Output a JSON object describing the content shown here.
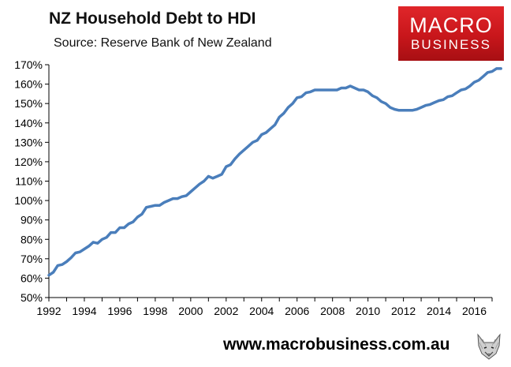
{
  "title": "NZ Household Debt to HDI",
  "subtitle": "Source: Reserve Bank of New Zealand",
  "logo": {
    "line1": "MACRO",
    "line2": "BUSINESS",
    "color": "#c8161b"
  },
  "footer": {
    "url": "www.macrobusiness.com.au",
    "icon": "wolf-icon"
  },
  "colors": {
    "line": "#4a7ebb",
    "axis": "#000000"
  },
  "chart_data": {
    "type": "line",
    "title": "NZ Household Debt to HDI",
    "subtitle": "Source: Reserve Bank of New Zealand",
    "xlabel": "",
    "ylabel": "",
    "xlim": [
      1992,
      2017
    ],
    "ylim": [
      50,
      170
    ],
    "grid": false,
    "x_ticks": [
      1992,
      1994,
      1996,
      1998,
      2000,
      2002,
      2004,
      2006,
      2008,
      2010,
      2012,
      2014,
      2016
    ],
    "y_ticks": [
      "50%",
      "60%",
      "70%",
      "80%",
      "90%",
      "100%",
      "110%",
      "120%",
      "130%",
      "140%",
      "150%",
      "160%",
      "170%"
    ],
    "series": [
      {
        "values": [
          [
            1992.0,
            61.5
          ],
          [
            1992.25,
            63
          ],
          [
            1992.5,
            66.5
          ],
          [
            1992.75,
            67
          ],
          [
            1993.0,
            68.5
          ],
          [
            1993.25,
            70.5
          ],
          [
            1993.5,
            73
          ],
          [
            1993.75,
            73.5
          ],
          [
            1994.0,
            75
          ],
          [
            1994.25,
            76.5
          ],
          [
            1994.5,
            78.5
          ],
          [
            1994.75,
            78
          ],
          [
            1995.0,
            80
          ],
          [
            1995.25,
            81
          ],
          [
            1995.5,
            83.5
          ],
          [
            1995.75,
            83.5
          ],
          [
            1996.0,
            86
          ],
          [
            1996.25,
            86
          ],
          [
            1996.5,
            88
          ],
          [
            1996.75,
            89
          ],
          [
            1997.0,
            91.5
          ],
          [
            1997.25,
            93
          ],
          [
            1997.5,
            96.5
          ],
          [
            1997.75,
            97
          ],
          [
            1998.0,
            97.5
          ],
          [
            1998.25,
            97.5
          ],
          [
            1998.5,
            99
          ],
          [
            1998.75,
            100
          ],
          [
            1999.0,
            101
          ],
          [
            1999.25,
            101
          ],
          [
            1999.5,
            102
          ],
          [
            1999.75,
            102.5
          ],
          [
            2000.0,
            104.5
          ],
          [
            2000.25,
            106.5
          ],
          [
            2000.5,
            108.5
          ],
          [
            2000.75,
            110
          ],
          [
            2001.0,
            112.5
          ],
          [
            2001.25,
            111.5
          ],
          [
            2001.5,
            112.5
          ],
          [
            2001.75,
            113.5
          ],
          [
            2002.0,
            117.5
          ],
          [
            2002.25,
            118.5
          ],
          [
            2002.5,
            121.5
          ],
          [
            2002.75,
            124
          ],
          [
            2003.0,
            126
          ],
          [
            2003.25,
            128
          ],
          [
            2003.5,
            130
          ],
          [
            2003.75,
            131
          ],
          [
            2004.0,
            134
          ],
          [
            2004.25,
            135
          ],
          [
            2004.5,
            137
          ],
          [
            2004.75,
            139
          ],
          [
            2005.0,
            143
          ],
          [
            2005.25,
            145
          ],
          [
            2005.5,
            148
          ],
          [
            2005.75,
            150
          ],
          [
            2006.0,
            153
          ],
          [
            2006.25,
            153.5
          ],
          [
            2006.5,
            155.5
          ],
          [
            2006.75,
            156
          ],
          [
            2007.0,
            157
          ],
          [
            2007.5,
            157
          ],
          [
            2008.0,
            157
          ],
          [
            2008.25,
            157
          ],
          [
            2008.5,
            158
          ],
          [
            2008.75,
            158
          ],
          [
            2009.0,
            159
          ],
          [
            2009.25,
            158
          ],
          [
            2009.5,
            157
          ],
          [
            2009.75,
            157
          ],
          [
            2010.0,
            156
          ],
          [
            2010.25,
            154
          ],
          [
            2010.5,
            153
          ],
          [
            2010.75,
            151
          ],
          [
            2011.0,
            150
          ],
          [
            2011.25,
            148
          ],
          [
            2011.5,
            147
          ],
          [
            2011.75,
            146.5
          ],
          [
            2012.0,
            146.5
          ],
          [
            2012.5,
            146.5
          ],
          [
            2012.75,
            147
          ],
          [
            2013.0,
            148
          ],
          [
            2013.25,
            149
          ],
          [
            2013.5,
            149.5
          ],
          [
            2013.75,
            150.5
          ],
          [
            2014.0,
            151.5
          ],
          [
            2014.25,
            152
          ],
          [
            2014.5,
            153.5
          ],
          [
            2014.75,
            154
          ],
          [
            2015.0,
            155.5
          ],
          [
            2015.25,
            157
          ],
          [
            2015.5,
            157.5
          ],
          [
            2015.75,
            159
          ],
          [
            2016.0,
            161
          ],
          [
            2016.25,
            162
          ],
          [
            2016.5,
            164
          ],
          [
            2016.75,
            166
          ],
          [
            2017.0,
            166.5
          ],
          [
            2017.25,
            168
          ],
          [
            2017.5,
            168
          ]
        ]
      }
    ]
  }
}
